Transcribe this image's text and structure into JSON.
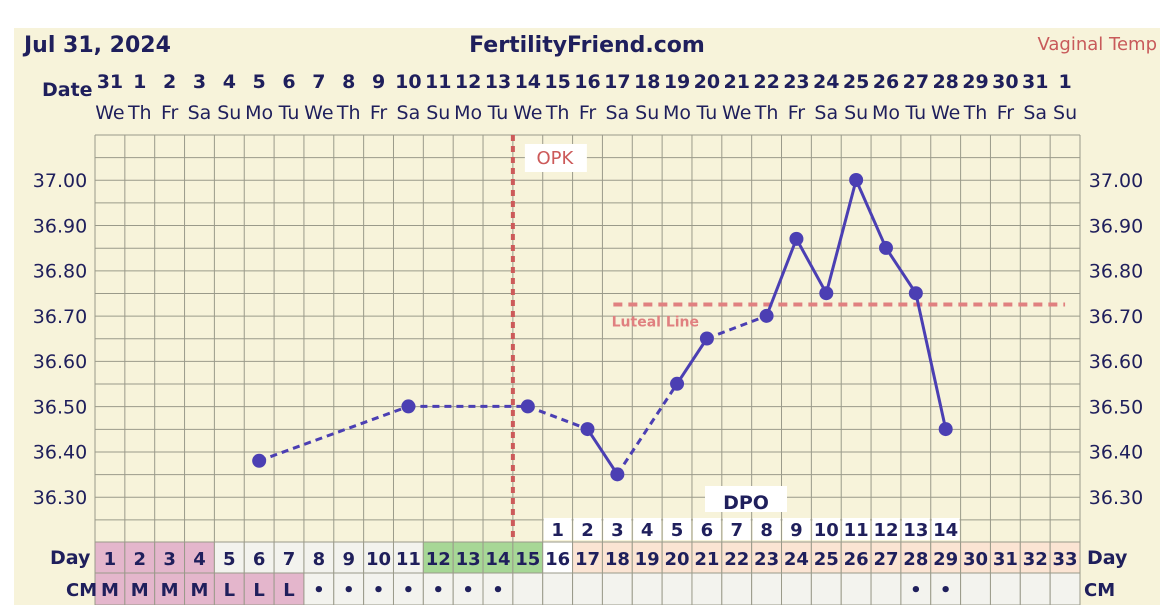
{
  "header": {
    "date": "Jul 31, 2024",
    "site": "FertilityFriend.com",
    "temp_type": "Vaginal Temp"
  },
  "chart_data": {
    "type": "line",
    "row_labels": {
      "date": "Date",
      "day": "Day",
      "cm": "CM",
      "dpo": "DPO"
    },
    "dates": [
      "31",
      "1",
      "2",
      "3",
      "4",
      "5",
      "6",
      "7",
      "8",
      "9",
      "10",
      "11",
      "12",
      "13",
      "14",
      "15",
      "16",
      "17",
      "18",
      "19",
      "20",
      "21",
      "22",
      "23",
      "24",
      "25",
      "26",
      "27",
      "28",
      "29",
      "30",
      "31",
      "1"
    ],
    "weekdays": [
      "We",
      "Th",
      "Fr",
      "Sa",
      "Su",
      "Mo",
      "Tu",
      "We",
      "Th",
      "Fr",
      "Sa",
      "Su",
      "Mo",
      "Tu",
      "We",
      "Th",
      "Fr",
      "Sa",
      "Su",
      "Mo",
      "Tu",
      "We",
      "Th",
      "Fr",
      "Sa",
      "Su",
      "Mo",
      "Tu",
      "We",
      "Th",
      "Fr",
      "Sa",
      "Su"
    ],
    "cycle_days": [
      "1",
      "2",
      "3",
      "4",
      "5",
      "6",
      "7",
      "8",
      "9",
      "10",
      "11",
      "12",
      "13",
      "14",
      "15",
      "16",
      "17",
      "18",
      "19",
      "20",
      "21",
      "22",
      "23",
      "24",
      "25",
      "26",
      "27",
      "28",
      "29",
      "30",
      "31",
      "32",
      "33"
    ],
    "day_highlight": [
      "period",
      "period",
      "period",
      "period",
      "none",
      "none",
      "none",
      "none",
      "none",
      "none",
      "none",
      "fertile",
      "fertile",
      "fertile",
      "fertile",
      "luteal",
      "luteal",
      "luteal",
      "luteal",
      "luteal",
      "luteal",
      "luteal",
      "luteal",
      "luteal",
      "luteal",
      "luteal",
      "luteal",
      "luteal",
      "luteal",
      "luteal",
      "luteal",
      "luteal",
      "luteal"
    ],
    "cm": [
      "M",
      "M",
      "M",
      "M",
      "L",
      "L",
      "L",
      "•",
      "•",
      "•",
      "•",
      "•",
      "•",
      "•",
      "",
      "",
      "",
      "",
      "",
      "",
      "",
      "",
      "",
      "",
      "",
      "",
      "",
      "•",
      "•",
      "",
      "",
      "",
      ""
    ],
    "dpo": [
      "",
      "",
      "",
      "",
      "",
      "",
      "",
      "",
      "",
      "",
      "",
      "",
      "",
      "",
      "",
      "1",
      "2",
      "3",
      "4",
      "5",
      "6",
      "7",
      "8",
      "9",
      "10",
      "11",
      "12",
      "13",
      "14",
      "",
      "",
      "",
      ""
    ],
    "yticks": [
      "37.00",
      "36.90",
      "36.80",
      "36.70",
      "36.60",
      "36.50",
      "36.40",
      "36.30"
    ],
    "ylim": [
      36.25,
      37.1
    ],
    "series": [
      {
        "points": [
          {
            "day": 6,
            "temp": 36.38
          },
          {
            "day": 11,
            "temp": 36.5
          },
          {
            "day": 15,
            "temp": 36.5
          },
          {
            "day": 17,
            "temp": 36.45
          },
          {
            "day": 18,
            "temp": 36.35
          },
          {
            "day": 20,
            "temp": 36.55
          },
          {
            "day": 21,
            "temp": 36.65
          },
          {
            "day": 23,
            "temp": 36.7
          },
          {
            "day": 24,
            "temp": 36.87
          },
          {
            "day": 25,
            "temp": 36.75
          },
          {
            "day": 26,
            "temp": 37.0
          },
          {
            "day": 27,
            "temp": 36.85
          },
          {
            "day": 28,
            "temp": 36.75
          },
          {
            "day": 29,
            "temp": 36.45
          }
        ]
      }
    ],
    "opk": {
      "label": "OPK",
      "day": 15
    },
    "luteal_line": {
      "label": "Luteal Line",
      "temp": 36.725,
      "from_day": 18,
      "to_day": 33
    },
    "colors": {
      "line": "#4b3fb3",
      "marker": "#4b3fb3",
      "ovulation": "#cc5a5a",
      "luteal": "#e08080",
      "background": "#f7f3da",
      "grid": "#9a9a8a",
      "period_cell": "#e4b6cc",
      "fertile_cell": "#a7d796",
      "luteal_cell": "#fbe4d3",
      "day_cell": "#f3f3ee",
      "label": "#1f1f5c"
    }
  }
}
